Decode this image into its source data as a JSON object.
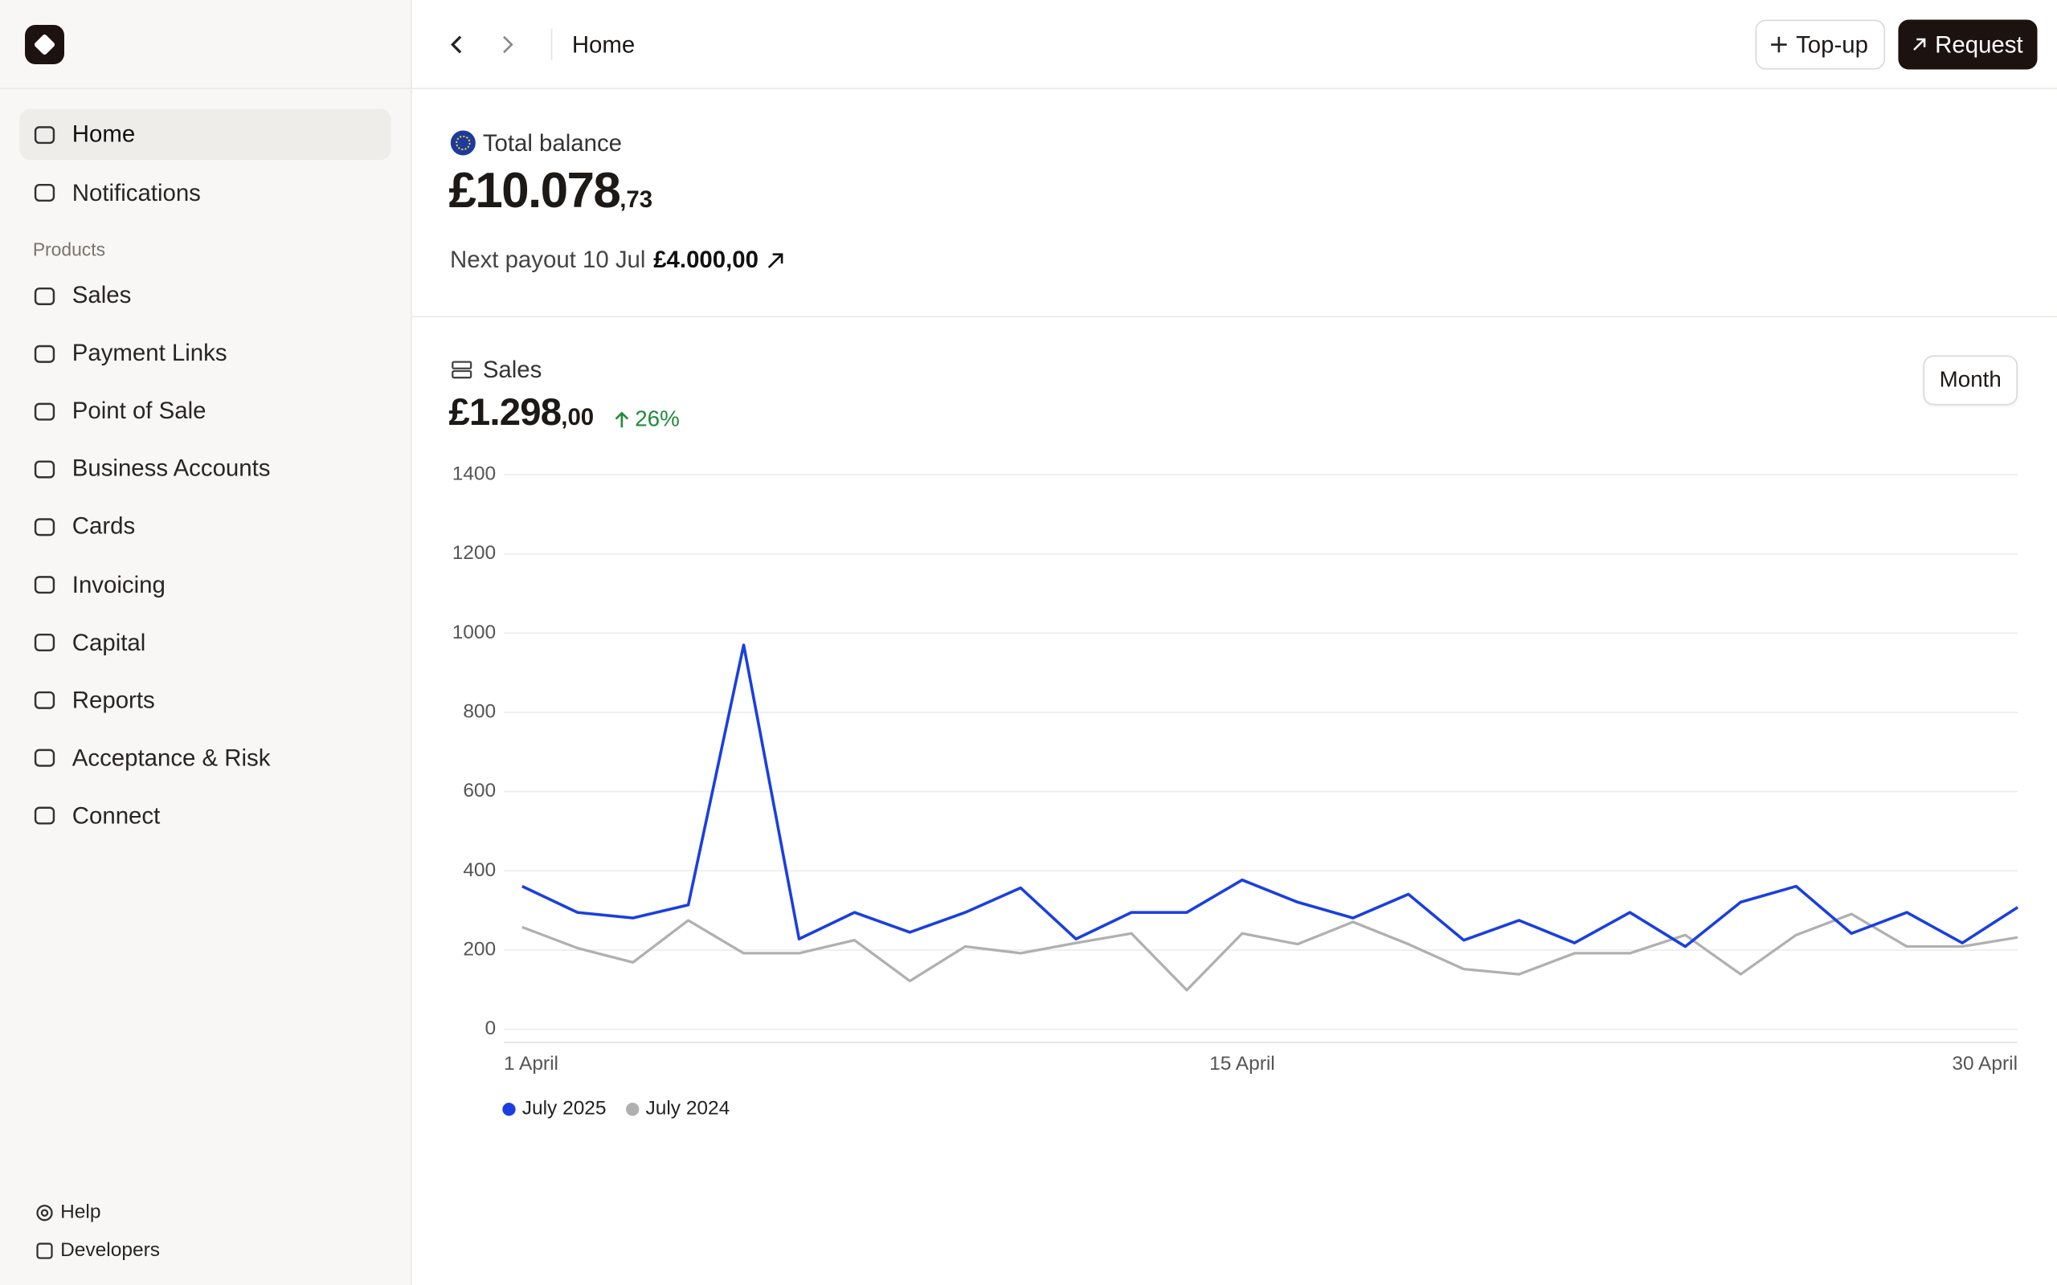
{
  "sidebar": {
    "items": [
      "Home",
      "Notifications"
    ],
    "section": "Products",
    "products": [
      "Sales",
      "Payment Links",
      "Point of Sale",
      "Business Accounts",
      "Cards",
      "Invoicing",
      "Capital",
      "Reports",
      "Acceptance & Risk",
      "Connect"
    ],
    "footer": [
      "Help",
      "Developers"
    ]
  },
  "header": {
    "breadcrumb": "Home",
    "buttons": [
      "Top-up",
      "Request"
    ]
  },
  "balance": {
    "label": "Total balance",
    "amount": "£10.078",
    "decimals": ",73",
    "payout_label": "Next payout 10 Jul",
    "payout_amount": "£4.000,00"
  },
  "sales": {
    "label": "Sales",
    "amount": "£1.298",
    "decimals": ",00",
    "change": "26%",
    "period": "Month"
  },
  "chart_data": {
    "type": "line",
    "categories": [
      "1 April",
      null,
      null,
      null,
      null,
      null,
      null,
      null,
      null,
      null,
      null,
      null,
      null,
      "15 April",
      null,
      null,
      null,
      null,
      null,
      null,
      null,
      null,
      null,
      null,
      null,
      null,
      null,
      "30 April"
    ],
    "series": [
      {
        "name": "July 2025",
        "color": "#1a3fe0",
        "values": [
          361,
          295,
          281,
          314,
          970,
          228,
          295,
          245,
          295,
          357,
          228,
          295,
          295,
          377,
          321,
          281,
          341,
          225,
          275,
          218,
          295,
          209,
          321,
          361,
          242,
          295,
          218,
          308
        ]
      },
      {
        "name": "July 2024",
        "color": "#b0b0b0",
        "values": [
          258,
          205,
          169,
          275,
          192,
          192,
          225,
          122,
          209,
          192,
          218,
          242,
          99,
          242,
          215,
          271,
          215,
          152,
          139,
          192,
          192,
          238,
          139,
          238,
          291,
          209,
          209,
          232
        ]
      }
    ],
    "ylim": [
      0,
      1400
    ],
    "yticks": [
      0,
      200,
      400,
      600,
      800,
      1000,
      1200,
      1400
    ],
    "grid": true
  }
}
